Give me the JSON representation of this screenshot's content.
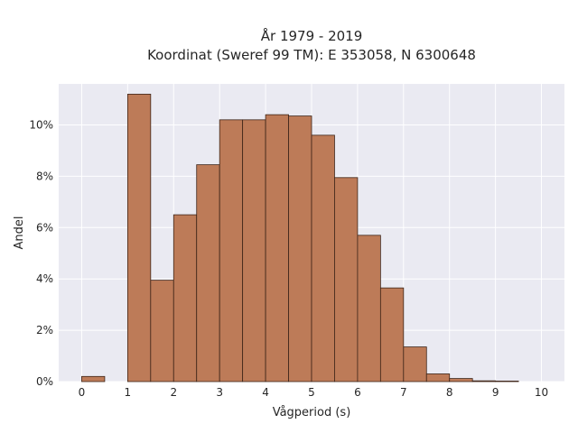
{
  "chart_data": {
    "type": "bar",
    "title_line1": "År 1979 - 2019",
    "title_line2": "Koordinat (Sweref 99 TM): E 353058, N 6300648",
    "xlabel": "Vågperiod (s)",
    "ylabel": "Andel",
    "x_ticks": [
      "0",
      "1",
      "2",
      "3",
      "4",
      "5",
      "6",
      "7",
      "8",
      "9",
      "10"
    ],
    "y_ticks": [
      "0%",
      "2%",
      "4%",
      "6%",
      "8%",
      "10%"
    ],
    "xlim": [
      -0.5,
      10.5
    ],
    "ylim": [
      0,
      11.6
    ],
    "bin_width": 0.5,
    "bins": [
      {
        "start": 0.0,
        "value": 0.2
      },
      {
        "start": 0.5,
        "value": 0.0
      },
      {
        "start": 1.0,
        "value": 11.2
      },
      {
        "start": 1.5,
        "value": 3.95
      },
      {
        "start": 2.0,
        "value": 6.5
      },
      {
        "start": 2.5,
        "value": 8.45
      },
      {
        "start": 3.0,
        "value": 10.2
      },
      {
        "start": 3.5,
        "value": 10.2
      },
      {
        "start": 4.0,
        "value": 10.4
      },
      {
        "start": 4.5,
        "value": 10.35
      },
      {
        "start": 5.0,
        "value": 9.6
      },
      {
        "start": 5.5,
        "value": 7.95
      },
      {
        "start": 6.0,
        "value": 5.7
      },
      {
        "start": 6.5,
        "value": 3.65
      },
      {
        "start": 7.0,
        "value": 1.35
      },
      {
        "start": 7.5,
        "value": 0.3
      },
      {
        "start": 8.0,
        "value": 0.12
      },
      {
        "start": 8.5,
        "value": 0.03
      },
      {
        "start": 9.0,
        "value": 0.02
      },
      {
        "start": 9.5,
        "value": 0.0
      }
    ],
    "grid": true,
    "colors": {
      "bar_fill": "#bd7b58",
      "bar_stroke": "#3d2418",
      "plot_bg": "#eaeaf2",
      "grid": "#ffffff"
    }
  }
}
